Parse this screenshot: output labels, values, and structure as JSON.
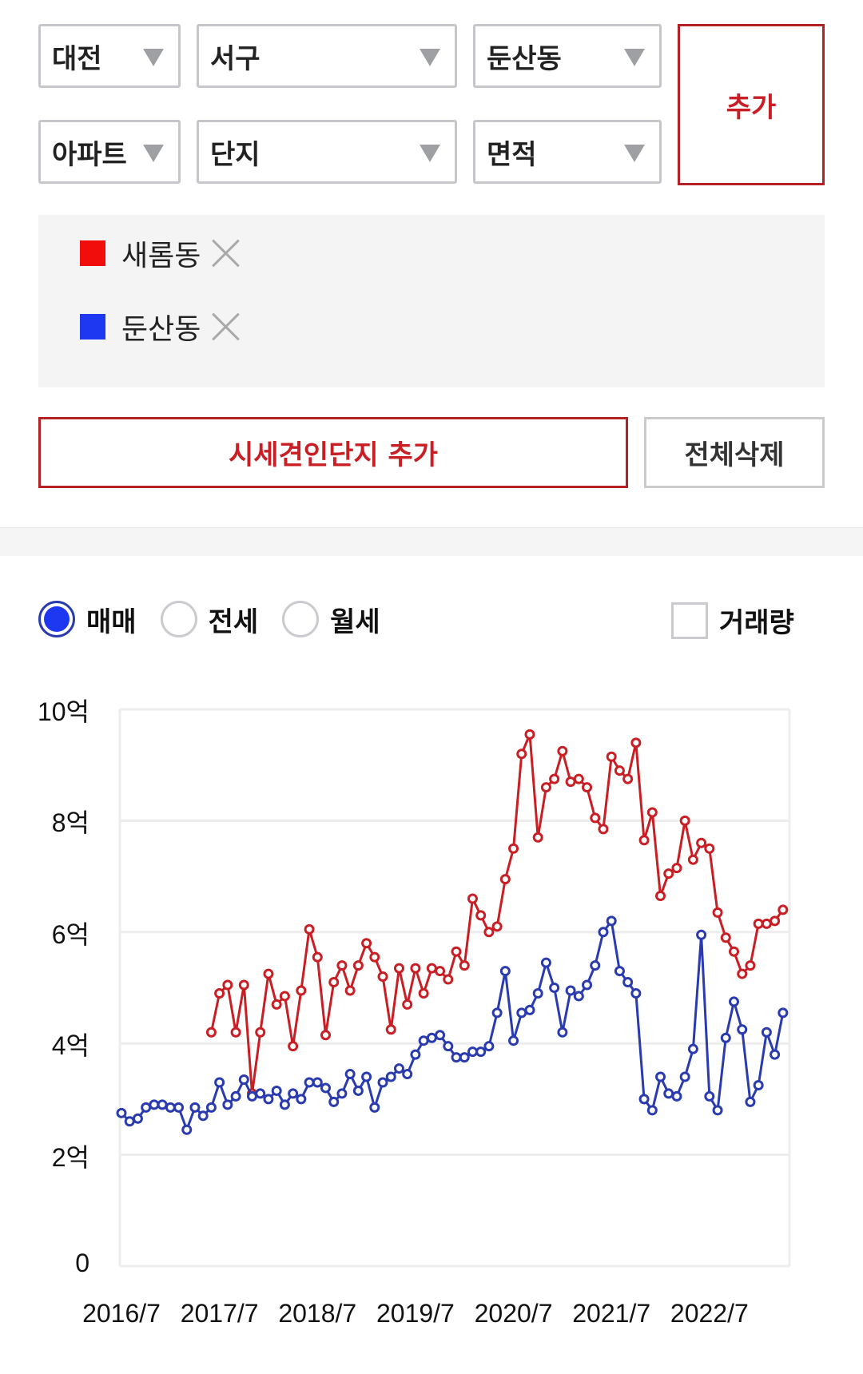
{
  "filters": {
    "row1": [
      {
        "label": "대전"
      },
      {
        "label": "서구"
      },
      {
        "label": "둔산동"
      }
    ],
    "row2": [
      {
        "label": "아파트"
      },
      {
        "label": "단지"
      },
      {
        "label": "면적"
      }
    ],
    "add_label": "추가"
  },
  "selected": [
    {
      "name": "새롬동",
      "color": "#f20d0d"
    },
    {
      "name": "둔산동",
      "color": "#1e37f0"
    }
  ],
  "actions": {
    "add_complex_label": "시세견인단지 추가",
    "delete_all_label": "전체삭제"
  },
  "options": {
    "radios": [
      {
        "label": "매매",
        "checked": true
      },
      {
        "label": "전세",
        "checked": false
      },
      {
        "label": "월세",
        "checked": false
      }
    ],
    "volume_label": "거래량",
    "volume_checked": false
  },
  "chart_data": {
    "type": "line",
    "title": "",
    "xlabel": "",
    "ylabel": "",
    "ylim": [
      0,
      10
    ],
    "y_unit": "억",
    "y_ticks": [
      "0",
      "2억",
      "4억",
      "6억",
      "8억",
      "10억"
    ],
    "x_ticks": [
      "2016/7",
      "2017/7",
      "2018/7",
      "2019/7",
      "2020/7",
      "2021/7",
      "2022/7"
    ],
    "grid": true,
    "legend": "none (shown as chips above)",
    "x_start": "2016/7",
    "x_step": "1 month",
    "series": [
      {
        "name": "새롬동",
        "color": "#c81e24",
        "start_index": 11,
        "values": [
          4.2,
          4.9,
          5.05,
          4.2,
          5.05,
          3.1,
          4.2,
          5.25,
          4.7,
          4.85,
          3.95,
          4.95,
          6.05,
          5.55,
          4.15,
          5.1,
          5.4,
          4.95,
          5.4,
          5.8,
          5.55,
          5.2,
          4.25,
          5.35,
          4.7,
          5.35,
          4.9,
          5.35,
          5.3,
          5.15,
          5.65,
          5.4,
          6.6,
          6.3,
          6.0,
          6.1,
          6.95,
          7.5,
          9.2,
          9.55,
          7.7,
          8.6,
          8.75,
          9.25,
          8.7,
          8.75,
          8.6,
          8.05,
          7.85,
          9.15,
          8.9,
          8.75,
          9.4,
          7.65,
          8.15,
          6.65,
          7.05,
          7.15,
          8.0,
          7.3,
          7.6,
          7.5,
          6.35,
          5.9,
          5.65,
          5.25,
          5.4,
          6.15,
          6.15,
          6.2,
          6.4
        ]
      },
      {
        "name": "둔산동",
        "color": "#2a3bb0",
        "start_index": 0,
        "values": [
          2.75,
          2.6,
          2.65,
          2.85,
          2.9,
          2.9,
          2.85,
          2.85,
          2.45,
          2.85,
          2.7,
          2.85,
          3.3,
          2.9,
          3.05,
          3.35,
          3.05,
          3.1,
          3.0,
          3.15,
          2.9,
          3.1,
          3.0,
          3.3,
          3.3,
          3.2,
          2.95,
          3.1,
          3.45,
          3.15,
          3.4,
          2.85,
          3.3,
          3.4,
          3.55,
          3.45,
          3.8,
          4.05,
          4.1,
          4.15,
          3.95,
          3.75,
          3.75,
          3.85,
          3.85,
          3.95,
          4.55,
          5.3,
          4.05,
          4.55,
          4.6,
          4.9,
          5.45,
          5.0,
          4.2,
          4.95,
          4.85,
          5.05,
          5.4,
          6.0,
          6.2,
          5.3,
          5.1,
          4.9,
          3.0,
          2.8,
          3.4,
          3.1,
          3.05,
          3.4,
          3.9,
          5.95,
          3.05,
          2.8,
          4.1,
          4.75,
          4.25,
          2.95,
          3.25,
          4.2,
          3.8,
          4.55
        ]
      }
    ]
  }
}
